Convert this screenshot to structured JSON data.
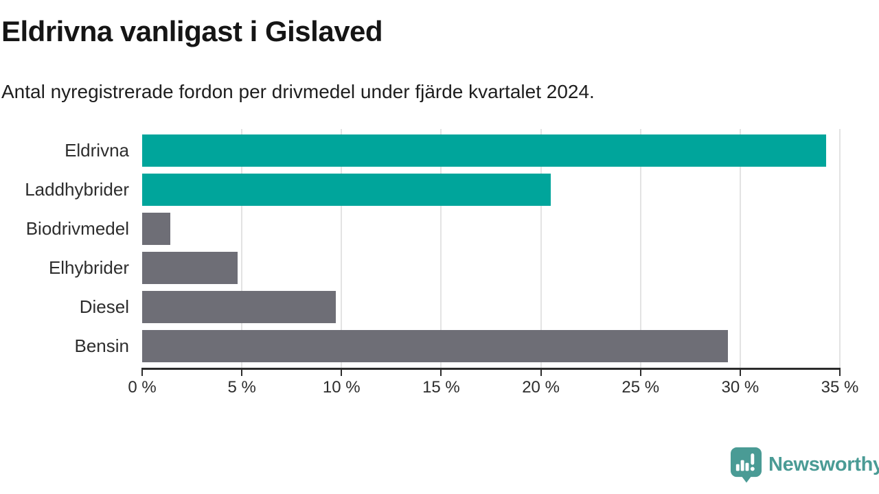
{
  "header": {
    "title": "Eldrivna vanligast i Gislaved",
    "subtitle": "Antal nyregistrerade fordon per drivmedel under fjärde kvartalet 2024."
  },
  "chart_data": {
    "type": "bar",
    "orientation": "horizontal",
    "title": "Eldrivna vanligast i Gislaved",
    "subtitle": "Antal nyregistrerade fordon per drivmedel under fjärde kvartalet 2024.",
    "categories": [
      "Eldrivna",
      "Laddhybrider",
      "Biodrivmedel",
      "Elhybrider",
      "Diesel",
      "Bensin"
    ],
    "values": [
      34.3,
      20.5,
      1.4,
      4.8,
      9.7,
      29.4
    ],
    "unit": "%",
    "bar_colors": [
      "#00a59b",
      "#00a59b",
      "#6e6e76",
      "#6e6e76",
      "#6e6e76",
      "#6e6e76"
    ],
    "highlight_color": "#00a59b",
    "default_color": "#6e6e76",
    "xlim": [
      0,
      35
    ],
    "x_tick_values": [
      0,
      5,
      10,
      15,
      20,
      25,
      30,
      35
    ],
    "x_tick_labels": [
      "0 %",
      "5 %",
      "10 %",
      "15 %",
      "20 %",
      "25 %",
      "30 %",
      "35 %"
    ],
    "grid": true,
    "gridline_color": "#e3e3e3",
    "axis_color": "#2b2b2b",
    "legend": "none"
  },
  "footer": {
    "brand": "Newsworthy",
    "brand_color": "#4a9b95",
    "logo_icon": "bar-chart-speech-bubble-icon"
  }
}
